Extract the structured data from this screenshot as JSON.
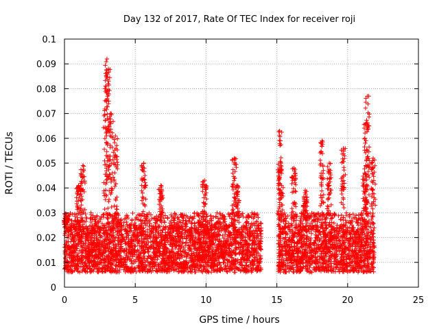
{
  "chart_data": {
    "type": "scatter",
    "title": "Day 132 of 2017, Rate Of TEC Index for receiver roji",
    "xlabel": "GPS time / hours",
    "ylabel": "ROTI / TECUs",
    "xlim": [
      0,
      25
    ],
    "ylim": [
      0,
      0.1
    ],
    "x_ticks": [
      0,
      5,
      10,
      15,
      20,
      25
    ],
    "x_tick_labels": [
      "0",
      "5",
      "10",
      "15",
      "20",
      "25"
    ],
    "y_ticks": [
      0,
      0.01,
      0.02,
      0.03,
      0.04,
      0.05,
      0.06,
      0.07,
      0.08,
      0.09,
      0.1
    ],
    "y_tick_labels": [
      "0",
      "0.01",
      "0.02",
      "0.03",
      "0.04",
      "0.05",
      "0.06",
      "0.07",
      "0.08",
      "0.09",
      "0.1"
    ],
    "grid": true,
    "marker": "+",
    "series": [
      {
        "name": "ROTI",
        "color": "#ff0000",
        "segments": [
          {
            "x_range": [
              0.0,
              13.9
            ],
            "baseline_range": [
              0.006,
              0.025
            ],
            "typical_peak": 0.03,
            "peak_events": [
              {
                "x": 0.1,
                "y": 0.028
              },
              {
                "x": 1.0,
                "y": 0.041
              },
              {
                "x": 1.3,
                "y": 0.049
              },
              {
                "x": 2.9,
                "y": 0.081
              },
              {
                "x": 3.0,
                "y": 0.092
              },
              {
                "x": 3.1,
                "y": 0.088
              },
              {
                "x": 3.3,
                "y": 0.07
              },
              {
                "x": 3.6,
                "y": 0.061
              },
              {
                "x": 5.6,
                "y": 0.05
              },
              {
                "x": 6.8,
                "y": 0.041
              },
              {
                "x": 9.9,
                "y": 0.043
              },
              {
                "x": 12.0,
                "y": 0.052
              },
              {
                "x": 12.2,
                "y": 0.041
              }
            ]
          },
          {
            "x_range": [
              15.1,
              21.9
            ],
            "baseline_range": [
              0.006,
              0.025
            ],
            "typical_peak": 0.03,
            "peak_events": [
              {
                "x": 15.2,
                "y": 0.063
              },
              {
                "x": 15.3,
                "y": 0.05
              },
              {
                "x": 16.2,
                "y": 0.048
              },
              {
                "x": 17.0,
                "y": 0.039
              },
              {
                "x": 18.2,
                "y": 0.059
              },
              {
                "x": 18.7,
                "y": 0.05
              },
              {
                "x": 19.7,
                "y": 0.056
              },
              {
                "x": 21.2,
                "y": 0.046
              },
              {
                "x": 21.3,
                "y": 0.066
              },
              {
                "x": 21.4,
                "y": 0.077
              },
              {
                "x": 21.8,
                "y": 0.052
              }
            ]
          }
        ]
      }
    ]
  }
}
